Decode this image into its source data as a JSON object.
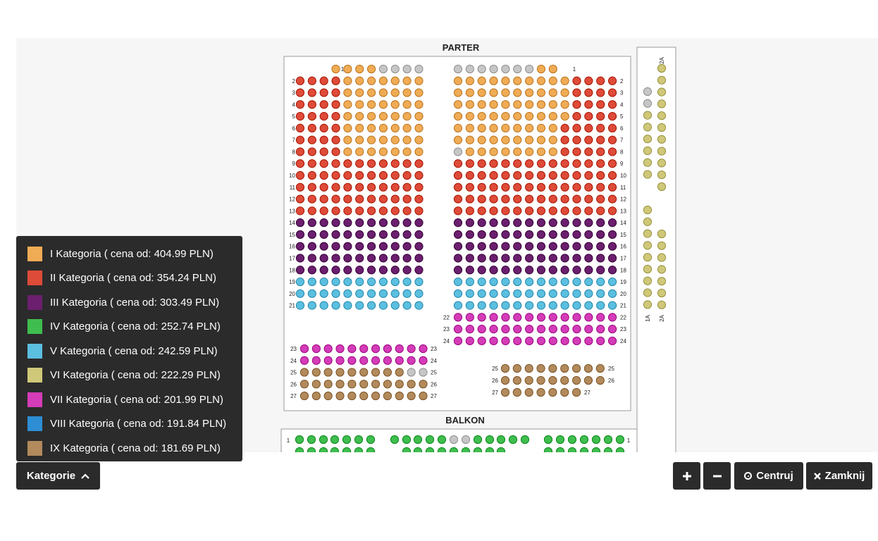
{
  "sections": {
    "parter": "PARTER",
    "balkon": "BALKON",
    "loge_top_a": "2A",
    "loge_top_b": "1A",
    "loge_bottom_a": "1A",
    "loge_bottom_b": "2A"
  },
  "categories": [
    {
      "label": "I Kategoria ( cena od: 404.99 PLN)",
      "color": "#f0ab55"
    },
    {
      "label": "II Kategoria ( cena od: 354.24 PLN)",
      "color": "#de4b38"
    },
    {
      "label": "III Kategoria ( cena od: 303.49 PLN)",
      "color": "#6b1f6e"
    },
    {
      "label": "IV Kategoria ( cena od: 252.74 PLN)",
      "color": "#3fbe4f"
    },
    {
      "label": "V Kategoria ( cena od: 242.59 PLN)",
      "color": "#5bbfe0"
    },
    {
      "label": "VI Kategoria ( cena od: 222.29 PLN)",
      "color": "#cfc878"
    },
    {
      "label": "VII Kategoria ( cena od: 201.99 PLN)",
      "color": "#d43cb8"
    },
    {
      "label": "VIII Kategoria ( cena od: 191.84 PLN)",
      "color": "#2d8ed4"
    },
    {
      "label": "IX Kategoria ( cena od: 181.69 PLN)",
      "color": "#b28a5c"
    }
  ],
  "unavailable_color": "#c6c6c6",
  "buttons": {
    "kategorie": "Kategorie",
    "zoom_in": "+",
    "zoom_out": "−",
    "centruj": "Centruj",
    "zamknij": "Zamknij"
  },
  "icons": {
    "kategorie": "chevron-up-icon",
    "centruj": "target-icon",
    "zamknij": "close-icon"
  }
}
